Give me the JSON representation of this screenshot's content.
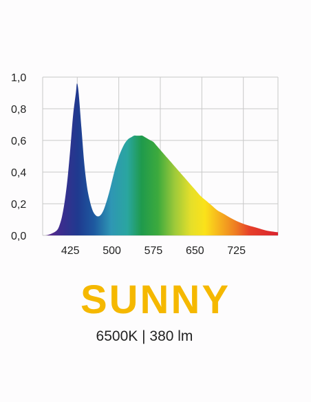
{
  "colors": {
    "brand": "#f5b800",
    "text": "#222222",
    "grid": "#c8c8c8"
  },
  "product": {
    "name": "SUNNY",
    "spec": "6500K | 380 lm"
  },
  "chart_data": {
    "type": "area",
    "xlabel": "",
    "ylabel": "",
    "xlim": [
      375,
      800
    ],
    "ylim": [
      0,
      1.0
    ],
    "grid": true,
    "x_ticks": [
      425,
      500,
      575,
      650,
      725
    ],
    "x_tick_labels": [
      "425",
      "500",
      "575",
      "650",
      "725"
    ],
    "y_ticks": [
      0,
      0.2,
      0.4,
      0.6,
      0.8,
      1.0
    ],
    "y_tick_labels": [
      "0,0",
      "0,2",
      "0,4",
      "0,6",
      "0,8",
      "1,0"
    ],
    "fill": "visible-spectrum gradient",
    "x": [
      380,
      390,
      400,
      405,
      410,
      415,
      420,
      425,
      430,
      435,
      437,
      440,
      445,
      450,
      455,
      460,
      465,
      470,
      475,
      480,
      485,
      490,
      495,
      500,
      505,
      510,
      515,
      520,
      525,
      530,
      535,
      540,
      545,
      550,
      555,
      560,
      565,
      570,
      575,
      580,
      585,
      590,
      595,
      600,
      610,
      620,
      630,
      640,
      650,
      660,
      670,
      680,
      690,
      700,
      720,
      740,
      760,
      780,
      800
    ],
    "y": [
      0.0,
      0.01,
      0.03,
      0.06,
      0.12,
      0.22,
      0.36,
      0.55,
      0.76,
      0.9,
      0.96,
      0.9,
      0.68,
      0.46,
      0.31,
      0.22,
      0.16,
      0.13,
      0.12,
      0.13,
      0.16,
      0.21,
      0.27,
      0.34,
      0.41,
      0.47,
      0.52,
      0.56,
      0.59,
      0.61,
      0.62,
      0.63,
      0.63,
      0.63,
      0.63,
      0.62,
      0.61,
      0.6,
      0.59,
      0.57,
      0.55,
      0.53,
      0.51,
      0.49,
      0.45,
      0.41,
      0.37,
      0.33,
      0.29,
      0.25,
      0.22,
      0.19,
      0.16,
      0.14,
      0.1,
      0.07,
      0.05,
      0.03,
      0.02
    ]
  }
}
